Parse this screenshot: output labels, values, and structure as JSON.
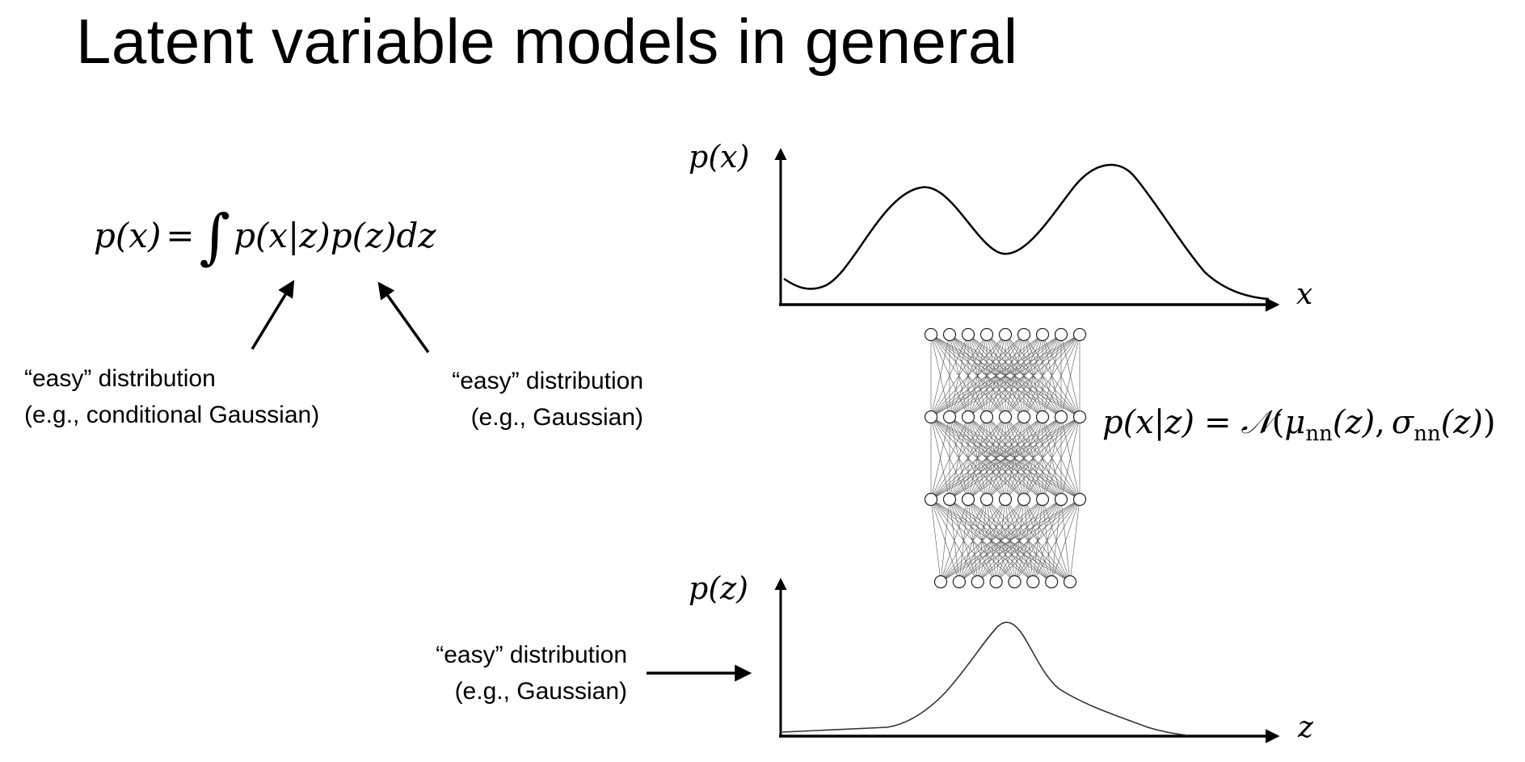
{
  "title": "Latent variable models in general",
  "equation_main": {
    "px": "p(x)",
    "eq": "=",
    "integral": "∫",
    "pxz": "p(x|z)",
    "pz": "p(z)",
    "dz": "dz"
  },
  "captions": {
    "left_conditional": {
      "line1": "“easy” distribution",
      "line2": "(e.g., conditional Gaussian)"
    },
    "mid_prior": {
      "line1": "“easy” distribution",
      "line2": "(e.g., Gaussian)"
    },
    "bottom_prior": {
      "line1": "“easy” distribution",
      "line2": "(e.g., Gaussian)"
    }
  },
  "plot_px": {
    "ylabel": "p(x)",
    "xlabel": "x"
  },
  "plot_pz": {
    "ylabel": "p(z)",
    "xlabel": "z"
  },
  "network_equation": {
    "lhs": "p(x|z)",
    "eq": "=",
    "N": "𝒩",
    "open": "(",
    "mu": "μ",
    "nn1": "nn",
    "arg1": "(z)",
    "comma": ",",
    "sigma": "σ",
    "nn2": "nn",
    "arg2": "(z)",
    "close": ")"
  },
  "network": {
    "layer_node_counts": [
      9,
      9,
      9,
      8
    ]
  }
}
